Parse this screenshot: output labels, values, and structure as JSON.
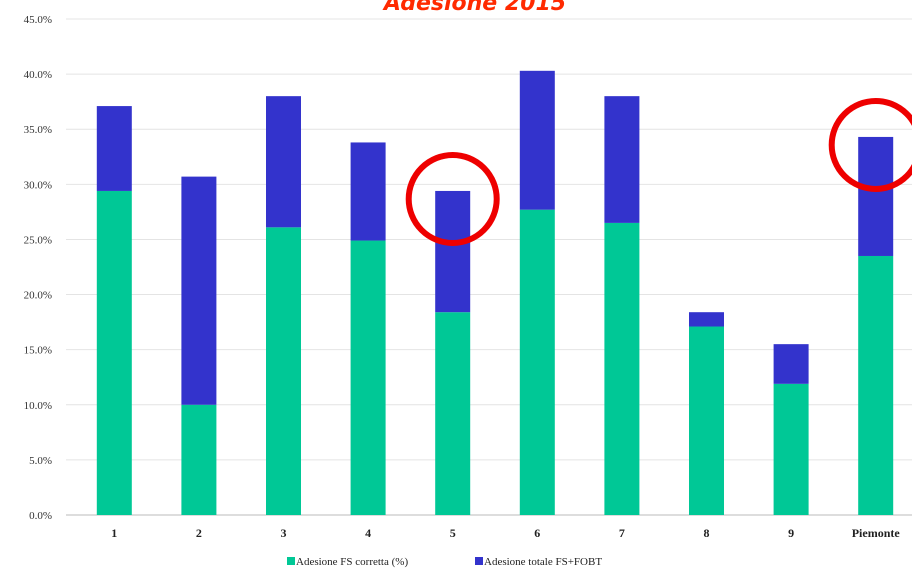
{
  "chart_data": {
    "type": "bar",
    "stacked": true,
    "title": "Adesione 2015",
    "categories": [
      "1",
      "2",
      "3",
      "4",
      "5",
      "6",
      "7",
      "8",
      "9",
      "Piemonte"
    ],
    "series": [
      {
        "name": "Adesione FS corretta (%)",
        "color": "#00c896",
        "values": [
          29.4,
          10.0,
          26.1,
          24.9,
          18.4,
          27.7,
          26.5,
          17.1,
          11.9,
          23.5
        ]
      },
      {
        "name": "Adesione totale FS+FOBT",
        "color": "#3333cc",
        "values": [
          7.7,
          20.7,
          11.9,
          8.9,
          11.0,
          12.6,
          11.5,
          1.3,
          3.6,
          10.8
        ]
      }
    ],
    "totals": [
      37.1,
      30.7,
      38.0,
      33.8,
      29.4,
      40.3,
      38.0,
      18.4,
      15.5,
      34.3
    ],
    "yticks": [
      "0.0%",
      "5.0%",
      "10.0%",
      "15.0%",
      "20.0%",
      "25.0%",
      "30.0%",
      "35.0%",
      "40.0%",
      "45.0%"
    ],
    "ylim": [
      0,
      45
    ],
    "grid": true,
    "legend_position": "bottom",
    "highlighted_categories": [
      "5",
      "Piemonte"
    ],
    "highlight_color": "#ee0000"
  }
}
